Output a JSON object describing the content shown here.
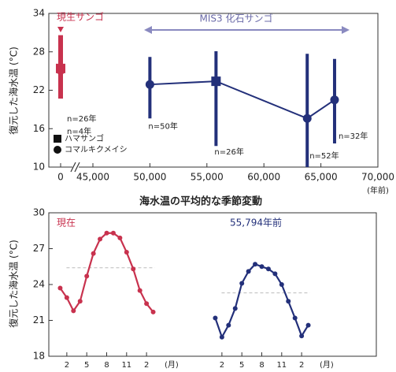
{
  "chart_data": [
    {
      "type": "errorbar",
      "ylabel": "復元した海水温 (°C)",
      "xlabel": "(年前)",
      "ylim": [
        10,
        34
      ],
      "yticks": [
        10,
        16,
        22,
        28,
        34
      ],
      "xlim": [
        0,
        70000
      ],
      "xticks": [
        0,
        {
          "value": 45000,
          "label": "45,000"
        },
        {
          "value": 50000,
          "label": "50,000"
        },
        {
          "value": 55000,
          "label": "55,000"
        },
        {
          "value": 60000,
          "label": "60,000"
        },
        {
          "value": 65000,
          "label": "65,000"
        },
        {
          "value": 70000,
          "label": "70,000"
        }
      ],
      "xbreak": true,
      "series": [
        {
          "name": "現生サンゴ",
          "color": "#c8324e",
          "x": [
            0,
            0
          ],
          "values": [
            25.4,
            25.1
          ],
          "low": [
            20.7,
            20.9
          ],
          "high": [
            30.6,
            29.8
          ],
          "markers": [
            "square",
            "circle"
          ],
          "n_labels": [
            "n=26年",
            "n=4年"
          ],
          "line": false
        },
        {
          "name": "MIS3 化石サンゴ",
          "color": "#23307a",
          "x": [
            50000,
            55800,
            63800,
            66200
          ],
          "values": [
            22.9,
            23.4,
            17.6,
            20.5
          ],
          "low": [
            17.6,
            13.3,
            10,
            13.7
          ],
          "high": [
            27.2,
            28.1,
            27.7,
            26.9
          ],
          "markers": [
            "circle",
            "square",
            "circle",
            "circle"
          ],
          "n_labels": [
            "n=50年",
            "n=26年",
            "n=52年",
            "n=32年"
          ],
          "line": true
        }
      ],
      "legend": {
        "position": "lower left",
        "labels": [
          "ハマサンゴ",
          "コマルキクメイシ"
        ],
        "markers": [
          "square",
          "circle"
        ]
      }
    },
    {
      "type": "line",
      "title": "海水温の平均的な季節変動",
      "ylabel": "復元した海水温 (°C)",
      "xunit": "(月)",
      "ylim": [
        18,
        30
      ],
      "yticks": [
        18,
        21,
        24,
        27,
        30
      ],
      "xlim": [
        0,
        16
      ],
      "x": [
        1,
        2,
        3,
        4,
        5,
        6,
        7,
        8,
        9,
        10,
        11,
        12,
        13,
        14,
        15
      ],
      "xticks": [
        2,
        5,
        8,
        11,
        {
          "value": 14,
          "label": "2"
        }
      ],
      "series": [
        {
          "name": "現在",
          "color": "#c8324e",
          "values": [
            23.7,
            22.9,
            21.8,
            22.6,
            24.7,
            26.6,
            27.8,
            28.3,
            28.3,
            27.9,
            26.7,
            25.3,
            23.5,
            22.4,
            21.7
          ],
          "mean": 25.4
        },
        {
          "name": "55,794年前",
          "color": "#23307a",
          "values": [
            21.2,
            19.6,
            20.6,
            22.0,
            24.1,
            25.1,
            25.7,
            25.5,
            25.3,
            24.9,
            24.0,
            22.6,
            21.2,
            19.7,
            20.6
          ],
          "mean": 23.3
        }
      ]
    }
  ]
}
